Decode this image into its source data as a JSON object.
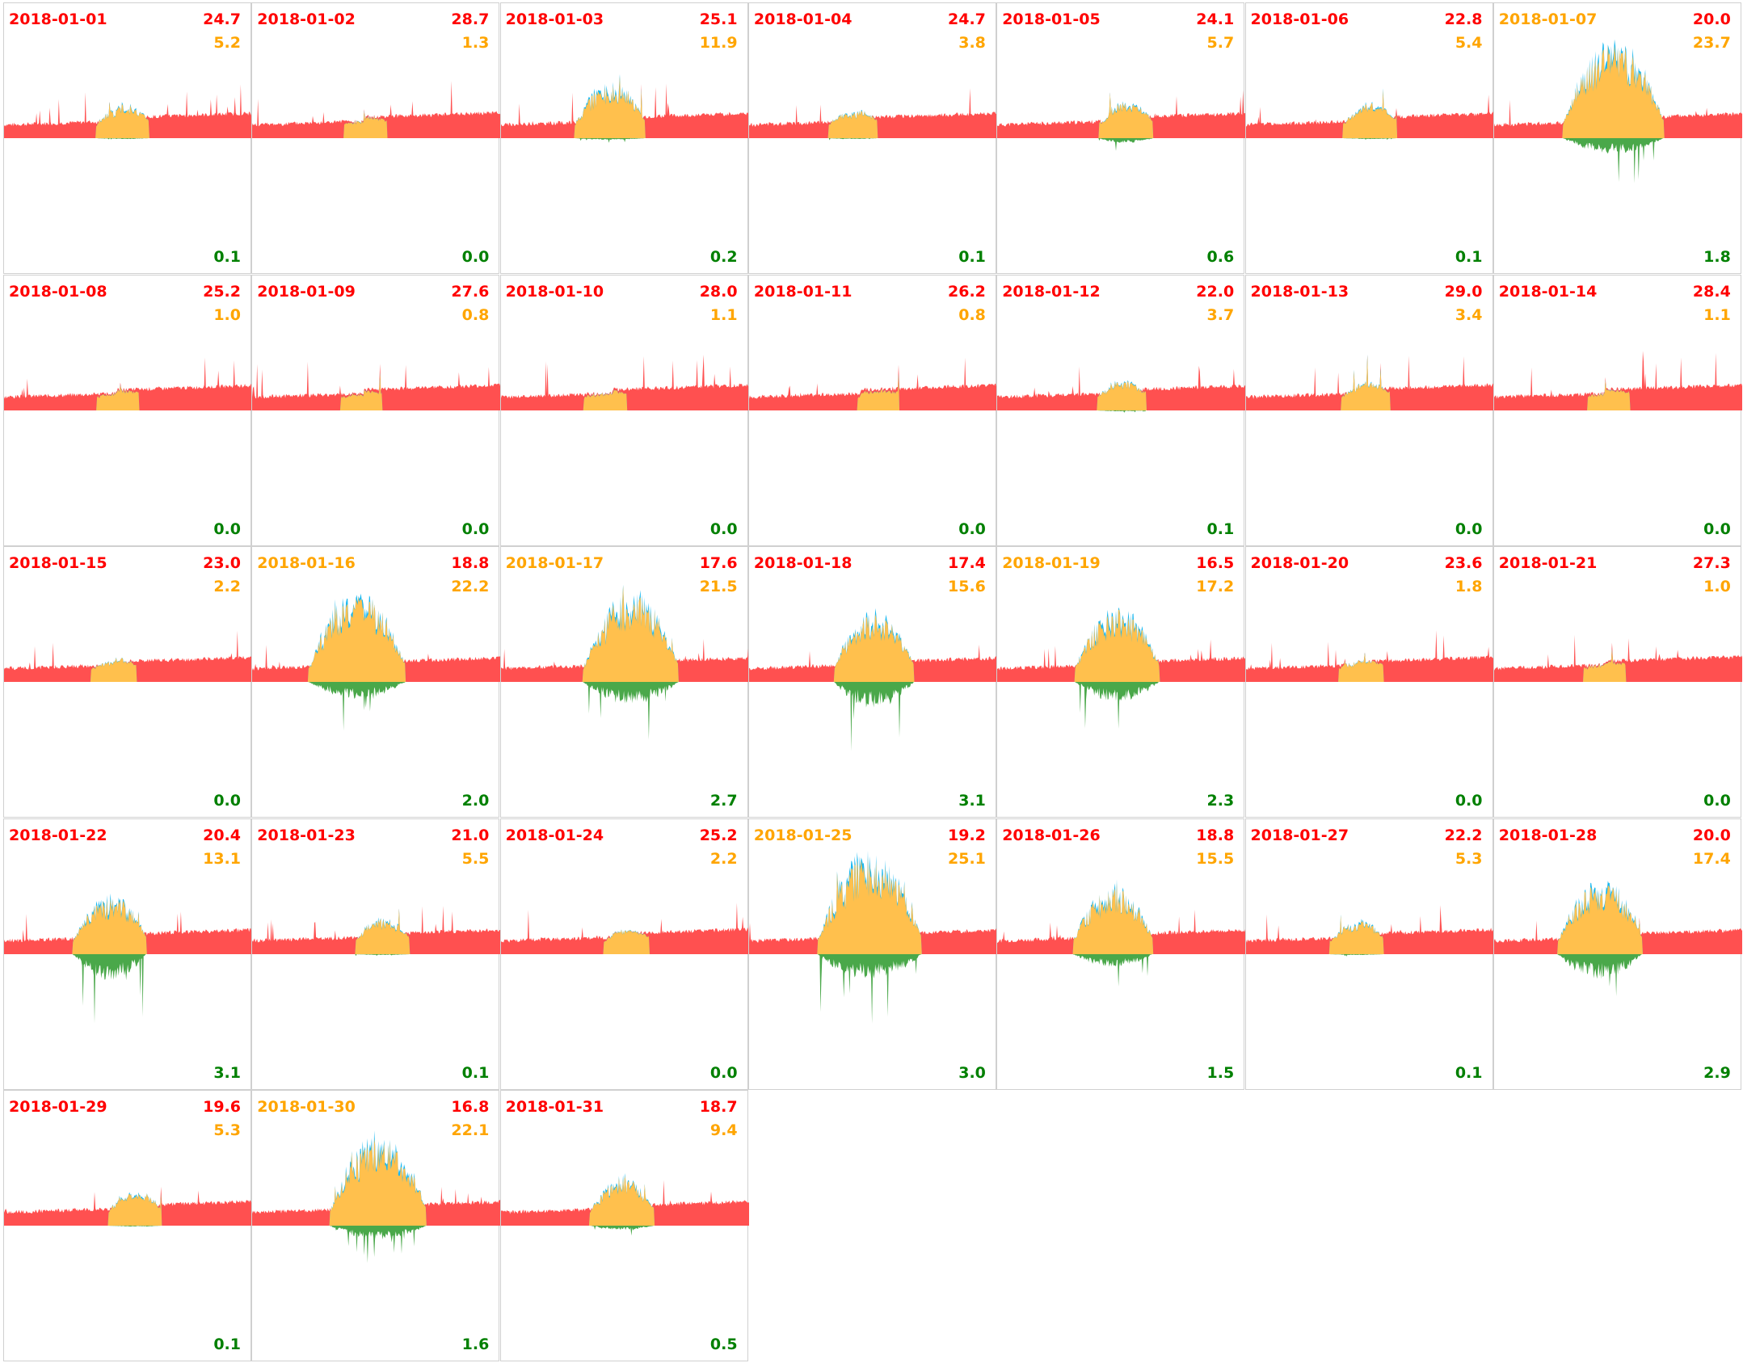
{
  "chart_data": {
    "type": "area",
    "layout": "small-multiples grid, 7 columns",
    "colors": {
      "red": "#ff5050",
      "yellow": "#ffc04d",
      "blue": "#1ab8f0",
      "green": "#4aa84a",
      "label_red": "#ff0000",
      "label_orange": "#ffa500",
      "label_green": "#008000"
    },
    "days": [
      {
        "date": "2018-01-01",
        "red": "24.7",
        "yellow": "5.2",
        "green": "0.1"
      },
      {
        "date": "2018-01-02",
        "red": "28.7",
        "yellow": "1.3",
        "green": "0.0"
      },
      {
        "date": "2018-01-03",
        "red": "25.1",
        "yellow": "11.9",
        "green": "0.2"
      },
      {
        "date": "2018-01-04",
        "red": "24.7",
        "yellow": "3.8",
        "green": "0.1"
      },
      {
        "date": "2018-01-05",
        "red": "24.1",
        "yellow": "5.7",
        "green": "0.6"
      },
      {
        "date": "2018-01-06",
        "red": "22.8",
        "yellow": "5.4",
        "green": "0.1"
      },
      {
        "date": "2018-01-07",
        "red": "20.0",
        "yellow": "23.7",
        "green": "1.8"
      },
      {
        "date": "2018-01-08",
        "red": "25.2",
        "yellow": "1.0",
        "green": "0.0"
      },
      {
        "date": "2018-01-09",
        "red": "27.6",
        "yellow": "0.8",
        "green": "0.0"
      },
      {
        "date": "2018-01-10",
        "red": "28.0",
        "yellow": "1.1",
        "green": "0.0"
      },
      {
        "date": "2018-01-11",
        "red": "26.2",
        "yellow": "0.8",
        "green": "0.0"
      },
      {
        "date": "2018-01-12",
        "red": "22.0",
        "yellow": "3.7",
        "green": "0.1"
      },
      {
        "date": "2018-01-13",
        "red": "29.0",
        "yellow": "3.4",
        "green": "0.0"
      },
      {
        "date": "2018-01-14",
        "red": "28.4",
        "yellow": "1.1",
        "green": "0.0"
      },
      {
        "date": "2018-01-15",
        "red": "23.0",
        "yellow": "2.2",
        "green": "0.0"
      },
      {
        "date": "2018-01-16",
        "red": "18.8",
        "yellow": "22.2",
        "green": "2.0"
      },
      {
        "date": "2018-01-17",
        "red": "17.6",
        "yellow": "21.5",
        "green": "2.7"
      },
      {
        "date": "2018-01-18",
        "red": "17.4",
        "yellow": "15.6",
        "green": "3.1"
      },
      {
        "date": "2018-01-19",
        "red": "16.5",
        "yellow": "17.2",
        "green": "2.3"
      },
      {
        "date": "2018-01-20",
        "red": "23.6",
        "yellow": "1.8",
        "green": "0.0"
      },
      {
        "date": "2018-01-21",
        "red": "27.3",
        "yellow": "1.0",
        "green": "0.0"
      },
      {
        "date": "2018-01-22",
        "red": "20.4",
        "yellow": "13.1",
        "green": "3.1"
      },
      {
        "date": "2018-01-23",
        "red": "21.0",
        "yellow": "5.5",
        "green": "0.1"
      },
      {
        "date": "2018-01-24",
        "red": "25.2",
        "yellow": "2.2",
        "green": "0.0"
      },
      {
        "date": "2018-01-25",
        "red": "19.2",
        "yellow": "25.1",
        "green": "3.0"
      },
      {
        "date": "2018-01-26",
        "red": "18.8",
        "yellow": "15.5",
        "green": "1.5"
      },
      {
        "date": "2018-01-27",
        "red": "22.2",
        "yellow": "5.3",
        "green": "0.1"
      },
      {
        "date": "2018-01-28",
        "red": "20.0",
        "yellow": "17.4",
        "green": "2.9"
      },
      {
        "date": "2018-01-29",
        "red": "19.6",
        "yellow": "5.3",
        "green": "0.1"
      },
      {
        "date": "2018-01-30",
        "red": "16.8",
        "yellow": "22.1",
        "green": "1.6"
      },
      {
        "date": "2018-01-31",
        "red": "18.7",
        "yellow": "9.4",
        "green": "0.5"
      }
    ]
  }
}
